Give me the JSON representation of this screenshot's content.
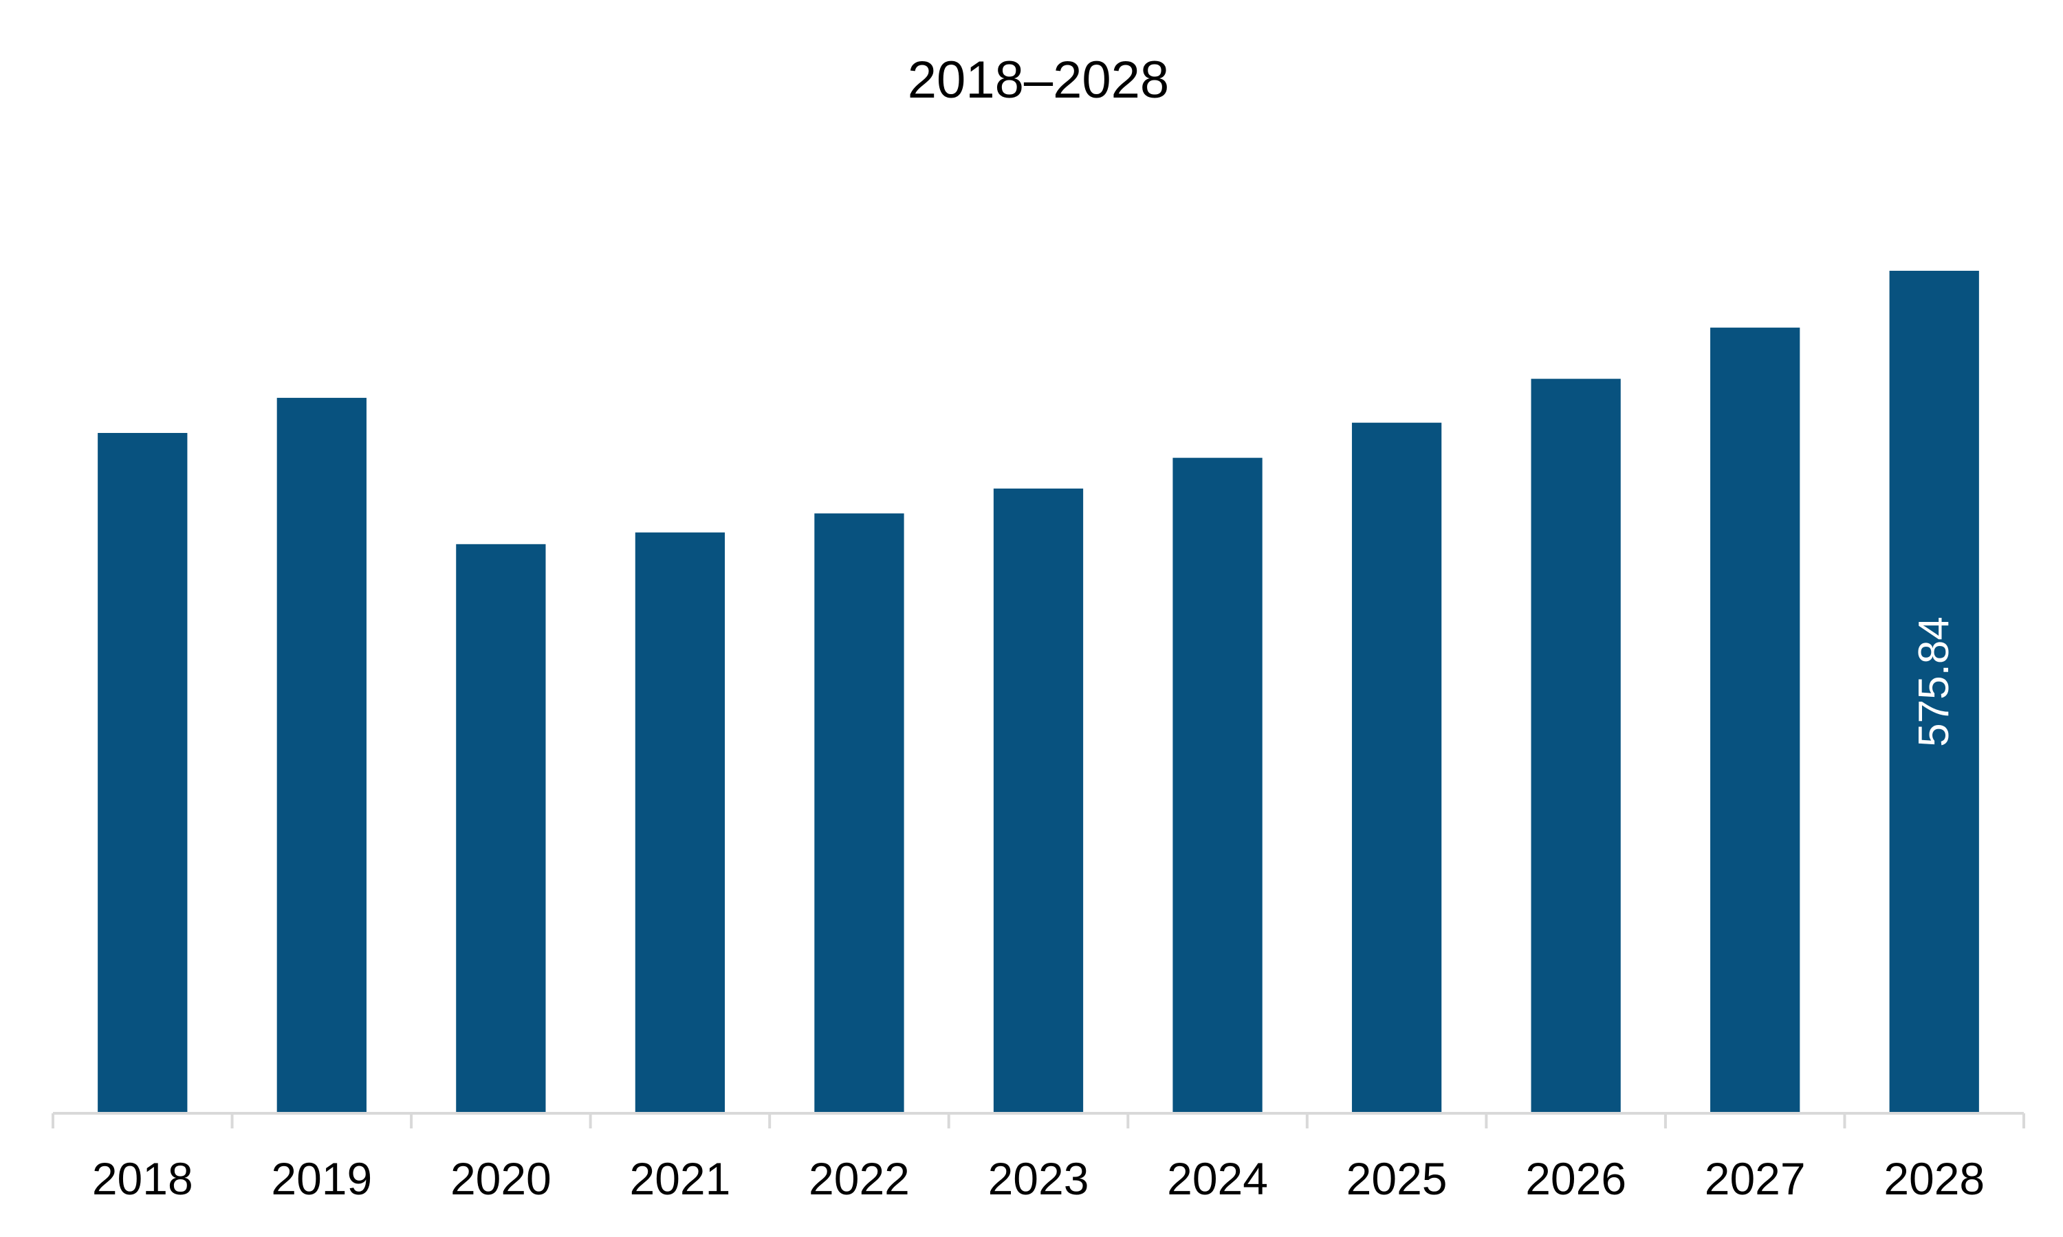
{
  "chart_data": {
    "type": "bar",
    "title": "2018–2028",
    "xlabel": "",
    "ylabel": "",
    "categories": [
      "2018",
      "2019",
      "2020",
      "2021",
      "2022",
      "2023",
      "2024",
      "2025",
      "2026",
      "2027",
      "2028"
    ],
    "values": [
      465,
      489,
      389,
      397,
      410,
      427,
      448,
      472,
      502,
      537,
      575.84
    ],
    "data_labels": [
      "",
      "",
      "",
      "",
      "",
      "",
      "",
      "",
      "",
      "",
      "575.84"
    ],
    "ylim": [
      0,
      620
    ],
    "grid": false,
    "legend": "none",
    "bar_color": "#08527f",
    "axis_color": "#d9d9d9"
  }
}
